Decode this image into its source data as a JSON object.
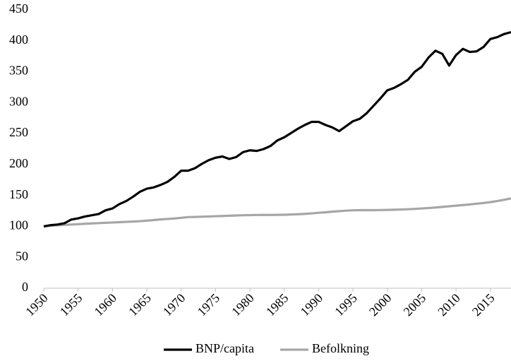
{
  "chart_data": {
    "type": "line",
    "x": [
      1950,
      1951,
      1952,
      1953,
      1954,
      1955,
      1956,
      1957,
      1958,
      1959,
      1960,
      1961,
      1962,
      1963,
      1964,
      1965,
      1966,
      1967,
      1968,
      1969,
      1970,
      1971,
      1972,
      1973,
      1974,
      1975,
      1976,
      1977,
      1978,
      1979,
      1980,
      1981,
      1982,
      1983,
      1984,
      1985,
      1986,
      1987,
      1988,
      1989,
      1990,
      1991,
      1992,
      1993,
      1994,
      1995,
      1996,
      1997,
      1998,
      1999,
      2000,
      2001,
      2002,
      2003,
      2004,
      2005,
      2006,
      2007,
      2008,
      2009,
      2010,
      2011,
      2012,
      2013,
      2014,
      2015,
      2016,
      2017,
      2018
    ],
    "series": [
      {
        "name": "BNP/capita",
        "color": "#000000",
        "values": [
          100,
          102,
          103,
          105,
          111,
          113,
          116,
          118,
          120,
          126,
          129,
          136,
          141,
          148,
          156,
          161,
          163,
          167,
          172,
          180,
          190,
          190,
          194,
          201,
          207,
          211,
          213,
          209,
          212,
          220,
          223,
          222,
          225,
          230,
          239,
          244,
          251,
          258,
          264,
          269,
          269,
          264,
          260,
          254,
          262,
          270,
          274,
          283,
          295,
          307,
          320,
          324,
          330,
          337,
          350,
          358,
          373,
          384,
          379,
          360,
          377,
          387,
          382,
          383,
          390,
          403,
          406,
          411,
          414
        ]
      },
      {
        "name": "Befolkning",
        "color": "#a6a6a6",
        "values": [
          100,
          101,
          101.7,
          102.3,
          103,
          103.6,
          104.2,
          104.8,
          105.3,
          105.8,
          106.3,
          106.8,
          107.3,
          107.8,
          108.4,
          109.2,
          110.2,
          111.2,
          112,
          112.8,
          113.8,
          115,
          115.3,
          115.6,
          116,
          116.4,
          116.8,
          117.2,
          117.6,
          118,
          118.2,
          118.4,
          118.5,
          118.5,
          118.6,
          118.8,
          119.2,
          119.6,
          120.2,
          121,
          122,
          122.8,
          123.8,
          124.6,
          125.4,
          126,
          126.2,
          126.2,
          126.2,
          126.4,
          126.6,
          126.9,
          127.3,
          127.7,
          128.3,
          129,
          129.7,
          130.5,
          131.5,
          132.5,
          133.5,
          134.5,
          135.5,
          136.7,
          137.8,
          139.2,
          141,
          143,
          145.2
        ]
      }
    ],
    "xlim": [
      1950,
      2018
    ],
    "xticks": [
      1950,
      1955,
      1960,
      1965,
      1970,
      1975,
      1980,
      1985,
      1990,
      1995,
      2000,
      2005,
      2010,
      2015
    ],
    "ylim": [
      0,
      450
    ],
    "yticks": [
      0,
      50,
      100,
      150,
      200,
      250,
      300,
      350,
      400,
      450
    ],
    "grid": false,
    "legend": "bottom"
  }
}
